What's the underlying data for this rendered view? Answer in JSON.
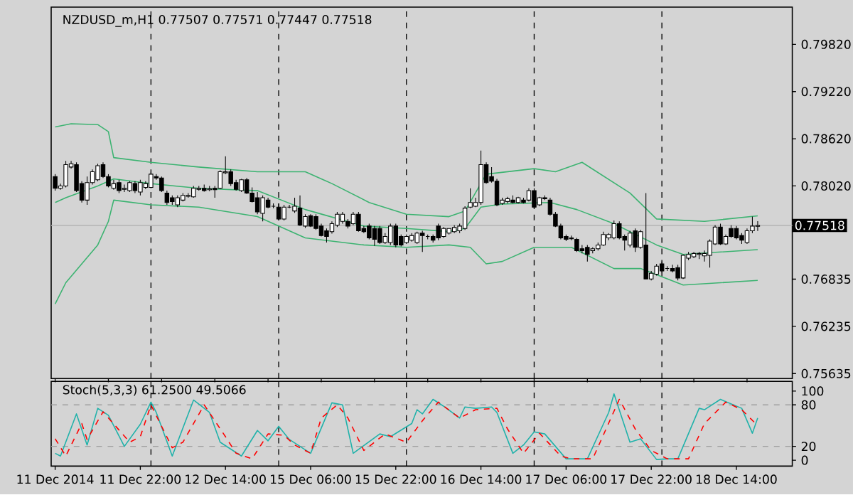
{
  "chart_data": [
    {
      "type": "candlestick",
      "title": "NZDUSD_m,H1  0.77507 0.77571 0.77447 0.77518",
      "categories": [
        null,
        null,
        null,
        null,
        null,
        null,
        null,
        null,
        null,
        null,
        null,
        null,
        null,
        null,
        null,
        null,
        null,
        null,
        null,
        null,
        null,
        null,
        null,
        null,
        null,
        null,
        null,
        null,
        null,
        null,
        null,
        null,
        null,
        null,
        null,
        null,
        null,
        null,
        null,
        null,
        null,
        null,
        null,
        null,
        null,
        null,
        null,
        null,
        null,
        null,
        null,
        null,
        null,
        null,
        null,
        null,
        null,
        null,
        null,
        null,
        null,
        null,
        null,
        null,
        null,
        null,
        null,
        null,
        null,
        null,
        null,
        null,
        null,
        null,
        null,
        null,
        null,
        null,
        null,
        null,
        null,
        null,
        null,
        null,
        null,
        null,
        null,
        null,
        null,
        null,
        null,
        null,
        null,
        null,
        null,
        null,
        null,
        null,
        null,
        null,
        null,
        null,
        null,
        null,
        null,
        null,
        null,
        null,
        null,
        null,
        null,
        null,
        null,
        null,
        null,
        null,
        null,
        null,
        null,
        null,
        null,
        null,
        null,
        null,
        null,
        null,
        null,
        null,
        null,
        null,
        null,
        null,
        null
      ],
      "ohlc": [
        [
          0.7814,
          0.7817,
          0.7796,
          0.7799
        ],
        [
          0.7799,
          0.7805,
          0.77972,
          0.7802
        ],
        [
          0.7802,
          0.78338,
          0.78002,
          0.7829
        ],
        [
          0.7826,
          0.78338,
          0.78242,
          0.78302
        ],
        [
          0.7829,
          0.7832,
          0.77942,
          0.7796
        ],
        [
          0.7805,
          0.7808,
          0.7781,
          0.7784
        ],
        [
          0.7784,
          0.7814,
          0.7778,
          0.78062
        ],
        [
          0.78062,
          0.7823,
          0.78038,
          0.782
        ],
        [
          0.78098,
          0.78302,
          0.7808,
          0.78278
        ],
        [
          0.7829,
          0.7832,
          0.78122,
          0.7814
        ],
        [
          0.7814,
          0.7817,
          0.78002,
          0.7802
        ],
        [
          0.7799,
          0.78098,
          0.77972,
          0.7805
        ],
        [
          0.78062,
          0.78098,
          0.7793,
          0.7796
        ],
        [
          0.77978,
          0.78038,
          0.77942,
          0.7799
        ],
        [
          0.7796,
          0.7808,
          0.77942,
          0.78062
        ],
        [
          0.7805,
          0.7808,
          0.7793,
          0.7796
        ],
        [
          0.77942,
          0.78098,
          0.779,
          0.78062
        ],
        [
          0.78002,
          0.7808,
          0.77978,
          0.7805
        ],
        [
          0.78002,
          0.782,
          0.7799,
          0.7817
        ],
        [
          0.7814,
          0.7817,
          0.78098,
          0.78122
        ],
        [
          0.78122,
          0.7814,
          0.77942,
          0.7796
        ],
        [
          0.7793,
          0.7796,
          0.7778,
          0.7781
        ],
        [
          0.7787,
          0.779,
          0.7778,
          0.77822
        ],
        [
          0.7778,
          0.779,
          0.7775,
          0.7787
        ],
        [
          0.7784,
          0.7793,
          0.77822,
          0.779
        ],
        [
          0.77888,
          0.7793,
          0.7787,
          0.779
        ],
        [
          0.77882,
          0.7802,
          0.7787,
          0.7799
        ],
        [
          0.77978,
          0.7802,
          0.7796,
          0.7799
        ],
        [
          0.7799,
          0.78038,
          0.77948,
          0.7796
        ],
        [
          0.77972,
          0.7802,
          0.77954,
          0.77984
        ],
        [
          0.7799,
          0.7802,
          0.7787,
          0.77972
        ],
        [
          0.7799,
          0.78218,
          0.77978,
          0.782
        ],
        [
          0.78188,
          0.78398,
          0.7817,
          0.782
        ],
        [
          0.782,
          0.7823,
          0.7802,
          0.7805
        ],
        [
          0.78062,
          0.78098,
          0.7796,
          0.77978
        ],
        [
          0.7796,
          0.7811,
          0.77942,
          0.78098
        ],
        [
          0.78098,
          0.78122,
          0.77918,
          0.7793
        ],
        [
          0.7793,
          0.78002,
          0.7781,
          0.77822
        ],
        [
          0.7787,
          0.77942,
          0.7766,
          0.7769
        ],
        [
          0.77672,
          0.779,
          0.7757,
          0.7787
        ],
        [
          0.7784,
          0.7787,
          0.77738,
          0.7775
        ],
        [
          0.77762,
          0.77798,
          0.77738,
          0.77762
        ],
        [
          0.7775,
          0.77798,
          0.77582,
          0.776
        ],
        [
          0.776,
          0.7778,
          0.77582,
          0.7775
        ],
        [
          0.7775,
          0.7778,
          0.77738,
          0.7775
        ],
        [
          0.77702,
          0.7787,
          0.77678,
          0.77762
        ],
        [
          0.77738,
          0.779,
          0.7751,
          0.77522
        ],
        [
          0.7751,
          0.7766,
          0.77486,
          0.7763
        ],
        [
          0.77642,
          0.7766,
          0.77498,
          0.7751
        ],
        [
          0.7763,
          0.7766,
          0.77462,
          0.7748
        ],
        [
          0.7751,
          0.7754,
          0.77378,
          0.7739
        ],
        [
          0.7745,
          0.7748,
          0.773,
          0.77378
        ],
        [
          0.77438,
          0.7757,
          0.77414,
          0.7754
        ],
        [
          0.77522,
          0.7769,
          0.77498,
          0.7766
        ],
        [
          0.7757,
          0.7769,
          0.7754,
          0.7766
        ],
        [
          0.7757,
          0.776,
          0.7748,
          0.7751
        ],
        [
          0.7754,
          0.7769,
          0.77522,
          0.7766
        ],
        [
          0.7766,
          0.7769,
          0.77438,
          0.7745
        ],
        [
          0.7748,
          0.7751,
          0.7742,
          0.77438
        ],
        [
          0.7751,
          0.7754,
          0.77342,
          0.7736
        ],
        [
          0.7748,
          0.7751,
          0.77258,
          0.77342
        ],
        [
          0.7748,
          0.7751,
          0.77282,
          0.773
        ],
        [
          0.773,
          0.7742,
          0.77282,
          0.77378
        ],
        [
          0.773,
          0.7754,
          0.7727,
          0.7751
        ],
        [
          0.7751,
          0.7754,
          0.7724,
          0.7727
        ],
        [
          0.77378,
          0.77402,
          0.77252,
          0.7727
        ],
        [
          0.773,
          0.77402,
          0.77282,
          0.77378
        ],
        [
          0.7733,
          0.7742,
          0.77312,
          0.7739
        ],
        [
          0.773,
          0.77438,
          0.77282,
          0.7742
        ],
        [
          0.7742,
          0.7745,
          0.7718,
          0.7739
        ],
        [
          0.77378,
          0.77402,
          0.77342,
          0.77378
        ],
        [
          0.77378,
          0.77402,
          0.773,
          0.7733
        ],
        [
          0.7751,
          0.7754,
          0.7733,
          0.7736
        ],
        [
          0.77378,
          0.77498,
          0.7736,
          0.7748
        ],
        [
          0.7742,
          0.7748,
          0.77402,
          0.7748
        ],
        [
          0.77438,
          0.77522,
          0.7742,
          0.77492
        ],
        [
          0.7745,
          0.7754,
          0.7742,
          0.7751
        ],
        [
          0.7748,
          0.77762,
          0.77462,
          0.77738
        ],
        [
          0.7775,
          0.7799,
          0.77738,
          0.7781
        ],
        [
          0.77762,
          0.7787,
          0.7775,
          0.7781
        ],
        [
          0.7781,
          0.7847,
          0.7778,
          0.7829
        ],
        [
          0.7829,
          0.7832,
          0.7805,
          0.78062
        ],
        [
          0.7814,
          0.7826,
          0.78062,
          0.7808
        ],
        [
          0.7808,
          0.7811,
          0.77762,
          0.7778
        ],
        [
          0.77798,
          0.7787,
          0.7778,
          0.7784
        ],
        [
          0.77822,
          0.77882,
          0.77798,
          0.77858
        ],
        [
          0.7784,
          0.779,
          0.77798,
          0.7781
        ],
        [
          0.7781,
          0.77882,
          0.77798,
          0.7787
        ],
        [
          0.7784,
          0.7787,
          0.77798,
          0.7781
        ],
        [
          0.7784,
          0.7799,
          0.77822,
          0.7796
        ],
        [
          0.7796,
          0.7799,
          0.77738,
          0.7775
        ],
        [
          0.7778,
          0.77882,
          0.77762,
          0.7787
        ],
        [
          0.7787,
          0.779,
          0.7784,
          0.77858
        ],
        [
          0.7784,
          0.7787,
          0.77642,
          0.7766
        ],
        [
          0.7766,
          0.7769,
          0.77498,
          0.7751
        ],
        [
          0.7751,
          0.7754,
          0.77342,
          0.7736
        ],
        [
          0.77378,
          0.77402,
          0.77318,
          0.77342
        ],
        [
          0.7736,
          0.7739,
          0.7733,
          0.77348
        ],
        [
          0.77342,
          0.7736,
          0.7718,
          0.77198
        ],
        [
          0.77222,
          0.7727,
          0.77162,
          0.77198
        ],
        [
          0.7724,
          0.7727,
          0.7706,
          0.7715
        ],
        [
          0.77198,
          0.7724,
          0.77162,
          0.77222
        ],
        [
          0.77222,
          0.773,
          0.77198,
          0.7727
        ],
        [
          0.7727,
          0.77438,
          0.77258,
          0.77402
        ],
        [
          0.7736,
          0.7742,
          0.7733,
          0.77402
        ],
        [
          0.7736,
          0.77582,
          0.77342,
          0.7754
        ],
        [
          0.7754,
          0.7757,
          0.77342,
          0.7736
        ],
        [
          0.77378,
          0.77402,
          0.77198,
          0.7733
        ],
        [
          0.7727,
          0.7745,
          0.7724,
          0.7742
        ],
        [
          0.7745,
          0.7748,
          0.7718,
          0.7724
        ],
        [
          0.7724,
          0.77462,
          0.77222,
          0.77438
        ],
        [
          0.7727,
          0.7793,
          0.76838,
          0.76838
        ],
        [
          0.76838,
          0.7694,
          0.7682,
          0.7691
        ],
        [
          0.76898,
          0.7703,
          0.7688,
          0.77
        ],
        [
          0.7703,
          0.7706,
          0.76922,
          0.7694
        ],
        [
          0.7697,
          0.77,
          0.7694,
          0.7697
        ],
        [
          0.7697,
          0.77018,
          0.76922,
          0.7694
        ],
        [
          0.76982,
          0.77018,
          0.7682,
          0.7685
        ],
        [
          0.7685,
          0.7715,
          0.76838,
          0.77138
        ],
        [
          0.77102,
          0.7718,
          0.77078,
          0.7715
        ],
        [
          0.7712,
          0.7718,
          0.77102,
          0.77162
        ],
        [
          0.7715,
          0.7718,
          0.7709,
          0.77162
        ],
        [
          0.77132,
          0.77198,
          0.7706,
          0.77162
        ],
        [
          0.77138,
          0.77342,
          0.76982,
          0.77318
        ],
        [
          0.77282,
          0.77522,
          0.7727,
          0.77498
        ],
        [
          0.77498,
          0.7754,
          0.7727,
          0.77282
        ],
        [
          0.77282,
          0.77402,
          0.7727,
          0.77378
        ],
        [
          0.7748,
          0.77522,
          0.7736,
          0.77378
        ],
        [
          0.7748,
          0.7751,
          0.77342,
          0.7736
        ],
        [
          0.7739,
          0.7742,
          0.77282,
          0.7733
        ],
        [
          0.773,
          0.7748,
          0.77282,
          0.7745
        ],
        [
          0.7745,
          0.7763,
          0.7742,
          0.7751
        ],
        [
          0.77507,
          0.77571,
          0.77447,
          0.77518
        ]
      ],
      "series": [
        {
          "type": "line",
          "color": "#3cb371",
          "values": [
            0.7877,
            null,
            null,
            0.7881,
            null,
            null,
            null,
            null,
            0.788,
            null,
            0.7871,
            0.7838,
            null,
            null,
            null,
            null,
            null,
            null,
            0.7832,
            null,
            null,
            null,
            null,
            null,
            null,
            null,
            null,
            0.7826,
            null,
            null,
            null,
            null,
            null,
            null,
            null,
            null,
            null,
            null,
            0.782,
            null,
            null,
            null,
            null,
            null,
            null,
            null,
            null,
            0.782,
            null,
            null,
            null,
            null,
            0.7805,
            null,
            null,
            null,
            null,
            null,
            null,
            0.7781,
            null,
            null,
            null,
            null,
            null,
            null,
            0.7766,
            null,
            null,
            null,
            null,
            null,
            null,
            null,
            0.7763,
            null,
            null,
            0.777,
            null,
            null,
            null,
            0.7817,
            null,
            null,
            null,
            null,
            null,
            null,
            null,
            null,
            0.7824,
            null,
            null,
            null,
            0.782,
            null,
            null,
            null,
            null,
            0.7832,
            null,
            null,
            null,
            null,
            null,
            null,
            null,
            null,
            0.7793,
            null,
            null,
            null,
            null,
            0.776,
            null,
            null,
            null,
            null,
            null,
            null,
            null,
            null,
            0.7757,
            null,
            null,
            null,
            null,
            null,
            null,
            null,
            null,
            null,
            0.7764
          ]
        },
        {
          "type": "line",
          "color": "#3cb371",
          "values": [
            0.7781,
            null,
            0.7787,
            null,
            null,
            null,
            null,
            null,
            0.7802,
            null,
            null,
            0.7811,
            null,
            null,
            null,
            null,
            null,
            null,
            0.7805,
            null,
            null,
            null,
            null,
            null,
            null,
            null,
            null,
            0.7799,
            null,
            null,
            null,
            null,
            null,
            null,
            null,
            null,
            null,
            null,
            0.7796,
            null,
            null,
            null,
            null,
            null,
            null,
            null,
            null,
            0.7772,
            null,
            null,
            null,
            null,
            null,
            null,
            null,
            null,
            null,
            null,
            0.7751,
            null,
            null,
            null,
            null,
            null,
            null,
            null,
            0.7748,
            null,
            null,
            null,
            null,
            null,
            null,
            null,
            0.7744,
            null,
            null,
            0.7748,
            null,
            null,
            0.7775,
            null,
            null,
            null,
            0.7779,
            null,
            null,
            null,
            null,
            null,
            null,
            null,
            null,
            0.7781,
            null,
            null,
            null,
            null,
            0.7772,
            null,
            null,
            null,
            null,
            null,
            null,
            0.7754,
            null,
            null,
            null,
            null,
            null,
            null,
            null,
            0.7727,
            null,
            null,
            null,
            null,
            0.7715,
            null,
            null,
            null,
            null,
            null,
            null,
            null,
            null,
            null,
            null,
            null,
            null,
            null,
            0.7721
          ]
        },
        {
          "type": "line",
          "color": "#3cb371",
          "values": [
            0.7652,
            null,
            0.7679,
            null,
            null,
            null,
            null,
            null,
            0.7727,
            null,
            0.7757,
            0.7784,
            null,
            null,
            null,
            null,
            null,
            null,
            0.7778,
            null,
            null,
            null,
            null,
            null,
            null,
            null,
            null,
            0.7775,
            null,
            null,
            null,
            null,
            null,
            null,
            null,
            null,
            null,
            null,
            0.7763,
            null,
            null,
            null,
            null,
            null,
            null,
            null,
            null,
            0.7736,
            null,
            null,
            null,
            null,
            null,
            null,
            null,
            null,
            null,
            null,
            0.7727,
            null,
            null,
            null,
            null,
            null,
            null,
            null,
            0.7724,
            null,
            null,
            null,
            null,
            null,
            null,
            null,
            0.7727,
            null,
            null,
            null,
            0.7724,
            null,
            null,
            0.7703,
            null,
            null,
            0.7706,
            null,
            null,
            null,
            null,
            null,
            0.7724,
            null,
            null,
            null,
            null,
            null,
            null,
            0.7724,
            null,
            null,
            null,
            null,
            null,
            null,
            null,
            0.7697,
            null,
            null,
            null,
            null,
            0.7697,
            null,
            null,
            null,
            null,
            null,
            null,
            null,
            0.7676,
            null,
            null,
            null,
            null,
            null,
            null,
            null,
            null,
            null,
            null,
            null,
            null,
            null,
            0.7682
          ]
        }
      ],
      "ylim": [
        0.75572,
        0.80294
      ],
      "yticks": [
        {
          "value": 0.75635,
          "label": "0.75635"
        },
        {
          "value": 0.76235,
          "label": "0.76235"
        },
        {
          "value": 0.76835,
          "label": "0.76835"
        },
        {
          "value": 0.7802,
          "label": "0.78020"
        },
        {
          "value": 0.7862,
          "label": "0.78620"
        },
        {
          "value": 0.7922,
          "label": "0.79220"
        },
        {
          "value": 0.7982,
          "label": "0.79820"
        }
      ],
      "tick_labels": "y",
      "ref_lines": [
        {
          "axis": "y",
          "value": 0.77518,
          "label": "0.77518",
          "color": "#b4b4b4",
          "line_style": "solid"
        }
      ]
    },
    {
      "type": "line",
      "title": "Stoch(5,3,3) 61.2500 49.5066",
      "categories": [
        "11 Dec 2014",
        null,
        null,
        null,
        null,
        null,
        null,
        null,
        null,
        null,
        null,
        null,
        null,
        null,
        null,
        null,
        "11 Dec 22:00",
        null,
        null,
        null,
        null,
        null,
        null,
        null,
        null,
        null,
        null,
        null,
        null,
        null,
        null,
        null,
        "12 Dec 14:00",
        null,
        null,
        null,
        null,
        null,
        null,
        null,
        null,
        null,
        null,
        null,
        null,
        null,
        null,
        null,
        "15 Dec 06:00",
        null,
        null,
        null,
        null,
        null,
        null,
        null,
        null,
        null,
        null,
        null,
        null,
        null,
        null,
        null,
        "15 Dec 22:00",
        null,
        null,
        null,
        null,
        null,
        null,
        null,
        null,
        null,
        null,
        null,
        null,
        null,
        null,
        null,
        "16 Dec 14:00",
        null,
        null,
        null,
        null,
        null,
        null,
        null,
        null,
        null,
        null,
        null,
        null,
        null,
        null,
        null,
        "17 Dec 06:00",
        null,
        null,
        null,
        null,
        null,
        null,
        null,
        null,
        null,
        null,
        null,
        null,
        null,
        null,
        null,
        "17 Dec 22:00",
        null,
        null,
        null,
        null,
        null,
        null,
        null,
        null,
        null,
        null,
        null,
        null,
        null,
        null,
        null,
        "18 Dec 14:00",
        null,
        null,
        null,
        null
      ],
      "series": [
        {
          "color": "#20b2aa",
          "line_style": "solid",
          "values": [
            10,
            6,
            null,
            null,
            67,
            null,
            22,
            null,
            75,
            null,
            65,
            null,
            null,
            20,
            null,
            null,
            52,
            null,
            84,
            69,
            null,
            null,
            6,
            null,
            null,
            null,
            87,
            null,
            null,
            69,
            null,
            26,
            null,
            null,
            null,
            6,
            null,
            null,
            43,
            null,
            28,
            null,
            49,
            null,
            30,
            null,
            null,
            null,
            10,
            null,
            null,
            null,
            83,
            null,
            80,
            null,
            10,
            null,
            null,
            null,
            null,
            38,
            null,
            34,
            null,
            null,
            null,
            53,
            73,
            67,
            null,
            88,
            null,
            78,
            null,
            null,
            61,
            77,
            null,
            75,
            null,
            null,
            77,
            69,
            null,
            null,
            10,
            null,
            22,
            null,
            41,
            null,
            38,
            null,
            null,
            null,
            2,
            null,
            null,
            null,
            2,
            null,
            null,
            null,
            69,
            96,
            null,
            null,
            26,
            null,
            31,
            null,
            null,
            1,
            null,
            2,
            null,
            2,
            null,
            null,
            null,
            75,
            73,
            null,
            null,
            88,
            null,
            null,
            null,
            75,
            null,
            39,
            61
          ]
        },
        {
          "color": "#ff0000",
          "line_style": "dashed",
          "values": [
            31,
            null,
            6,
            null,
            null,
            53,
            30,
            null,
            null,
            70,
            null,
            null,
            null,
            null,
            26,
            null,
            34,
            null,
            80,
            null,
            null,
            null,
            18,
            null,
            26,
            null,
            null,
            null,
            80,
            null,
            null,
            null,
            34,
            null,
            10,
            null,
            null,
            2,
            null,
            null,
            38,
            null,
            null,
            36,
            null,
            22,
            null,
            null,
            10,
            null,
            61,
            null,
            null,
            80,
            null,
            61,
            null,
            null,
            14,
            null,
            null,
            null,
            38,
            null,
            null,
            null,
            26,
            null,
            null,
            57,
            null,
            null,
            84,
            null,
            null,
            null,
            61,
            null,
            null,
            73,
            null,
            null,
            null,
            75,
            null,
            45,
            null,
            null,
            10,
            null,
            null,
            39,
            null,
            null,
            null,
            6,
            null,
            2,
            null,
            null,
            null,
            2,
            null,
            null,
            null,
            null,
            88,
            null,
            null,
            45,
            null,
            null,
            14,
            null,
            null,
            2,
            null,
            null,
            null,
            2,
            null,
            null,
            53,
            null,
            null,
            null,
            84,
            null,
            null,
            73,
            null,
            null,
            50
          ]
        }
      ],
      "ylim": [
        -8.5,
        114
      ],
      "yticks": [
        0,
        20,
        80,
        100
      ],
      "ref_lines": [
        {
          "axis": "y",
          "value": 20,
          "color": "#a0a0a0",
          "line_style": "dashed"
        },
        {
          "axis": "y",
          "value": 80,
          "color": "#a0a0a0",
          "line_style": "dashed"
        }
      ]
    }
  ]
}
